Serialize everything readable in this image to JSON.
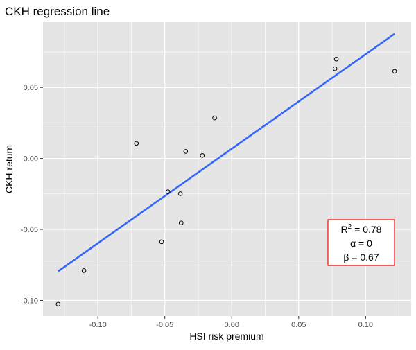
{
  "chart_data": {
    "type": "scatter",
    "title": "CKH regression line",
    "xlabel": "HSI risk premium",
    "ylabel": "CKH return",
    "xlim": [
      -0.141,
      0.134
    ],
    "ylim": [
      -0.111,
      0.096
    ],
    "x_ticks": [
      -0.1,
      -0.05,
      0.0,
      0.05,
      0.1
    ],
    "x_tick_labels": [
      "-0.10",
      "-0.05",
      "0.00",
      "0.05",
      "0.10"
    ],
    "y_ticks": [
      -0.1,
      -0.05,
      0.0,
      0.05
    ],
    "y_tick_labels": [
      "-0.10",
      "-0.05",
      "0.00",
      "0.05"
    ],
    "grid": true,
    "panel_background": "#e5e5e5",
    "grid_color": "#ffffff",
    "points": [
      {
        "x": -0.1297,
        "y": -0.1026
      },
      {
        "x": -0.1104,
        "y": -0.079
      },
      {
        "x": -0.0712,
        "y": 0.0106
      },
      {
        "x": -0.0524,
        "y": -0.0587
      },
      {
        "x": -0.0477,
        "y": -0.0234
      },
      {
        "x": -0.0384,
        "y": -0.0248
      },
      {
        "x": -0.0378,
        "y": -0.0454
      },
      {
        "x": -0.0344,
        "y": 0.005
      },
      {
        "x": -0.022,
        "y": 0.0021
      },
      {
        "x": -0.0128,
        "y": 0.0286
      },
      {
        "x": 0.0771,
        "y": 0.0632
      },
      {
        "x": 0.0781,
        "y": 0.07
      },
      {
        "x": 0.1216,
        "y": 0.0614
      }
    ],
    "regression_line": {
      "color": "#3366ff",
      "x": [
        -0.1297,
        0.1216
      ],
      "y": [
        -0.0795,
        0.0878
      ]
    },
    "annotation": {
      "border_color": "#ff0000",
      "r2_label": "R",
      "r2_sup": "2",
      "r2_value": " = 0.78",
      "alpha_text": "α = 0",
      "beta_text": "β = 0.67"
    }
  }
}
